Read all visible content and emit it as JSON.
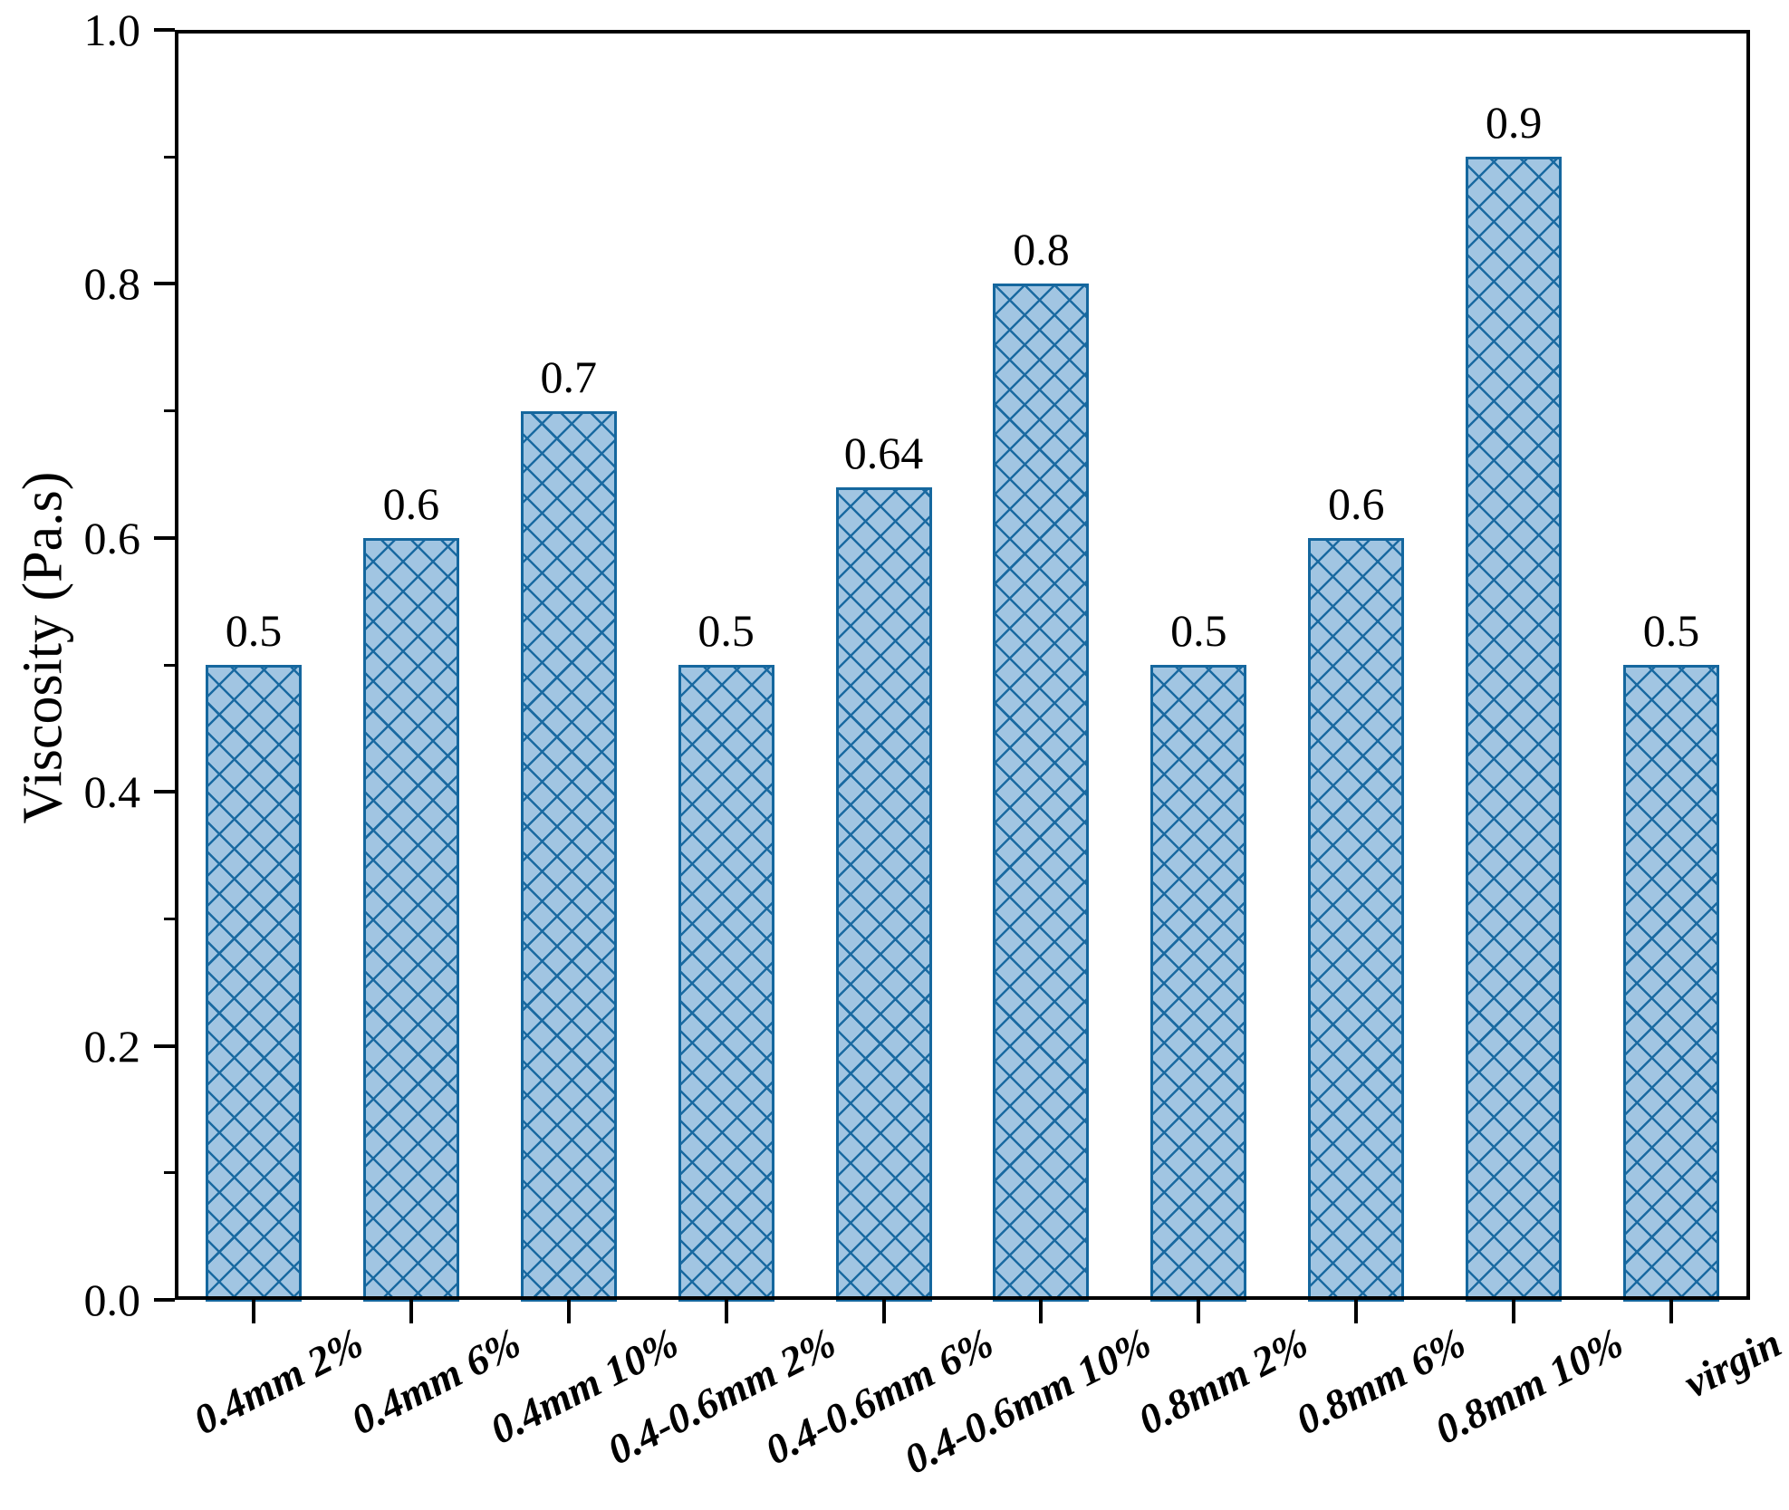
{
  "figure": {
    "background": "#ffffff"
  },
  "chart_data": {
    "type": "bar",
    "title": "",
    "xlabel": "",
    "ylabel": "Viscosity (Pa.s)",
    "categories": [
      "0.4mm 2%",
      "0.4mm 6%",
      "0.4mm 10%",
      "0.4-0.6mm 2%",
      "0.4-0.6mm 6%",
      "0.4-0.6mm 10%",
      "0.8mm 2%",
      "0.8mm 6%",
      "0.8mm 10%",
      "virgin"
    ],
    "values": [
      0.5,
      0.6,
      0.7,
      0.5,
      0.64,
      0.8,
      0.5,
      0.6,
      0.9,
      0.5
    ],
    "bar_value_labels": [
      "0.5",
      "0.6",
      "0.7",
      "0.5",
      "0.64",
      "0.8",
      "0.5",
      "0.6",
      "0.9",
      "0.5"
    ],
    "ylim": [
      0.0,
      1.0
    ],
    "ytick_labels": [
      "0.0",
      "0.2",
      "0.4",
      "0.6",
      "0.8",
      "1.0"
    ],
    "ytick_values": [
      0.0,
      0.2,
      0.4,
      0.6,
      0.8,
      1.0
    ],
    "yminor_tick_values": [
      0.1,
      0.3,
      0.5,
      0.7,
      0.9
    ],
    "grid": false,
    "legend": "none",
    "bar_hatch_style": "crosshatch-xx",
    "colors": {
      "bar_fill": "#a1c5e2",
      "bar_hatch": "#1a6aa1",
      "bar_edge": "#15679e",
      "axis": "#000000",
      "text": "#000000"
    }
  }
}
